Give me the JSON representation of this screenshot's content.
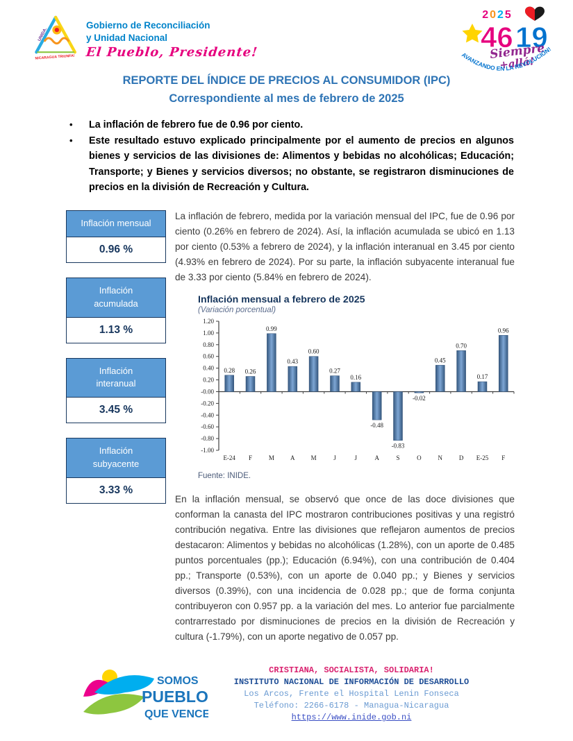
{
  "header": {
    "gov": {
      "line1": "Gobierno de Reconciliación",
      "line2": "y Unidad Nacional",
      "script": "El Pueblo, Presidente!",
      "triangle_left": "UNIDA.",
      "triangle_bottom": "NICARAGUA TRIUNFA!"
    },
    "anniv": {
      "year_chars": [
        "2",
        "0",
        "2",
        "5"
      ],
      "num_left": "46",
      "num_right": "19",
      "script1": "Siempre",
      "script2": "+allá!",
      "arc": "AVANZANDO EN LA REVOLUCIÓN!"
    }
  },
  "title": {
    "line1": "REPORTE DEL ÍNDICE DE PRECIOS AL CONSUMIDOR (IPC)",
    "line2": "Correspondiente al mes de febrero de 2025"
  },
  "bullets": [
    "La inflación de febrero fue de 0.96 por ciento.",
    "Este resultado estuvo explicado principalmente por el aumento de precios en algunos bienes y servicios de las divisiones de: Alimentos y bebidas no alcohólicas; Educación; Transporte; y Bienes y servicios diversos; no obstante, se registraron disminuciones de precios en la división de Recreación y Cultura."
  ],
  "stats": [
    {
      "label": "Inflación mensual",
      "value": "0.96 %"
    },
    {
      "label": "Inflación\nacumulada",
      "value": "1.13 %"
    },
    {
      "label": "Inflación\ninteranual",
      "value": "3.45 %"
    },
    {
      "label": "Inflación\nsubyacente",
      "value": "3.33 %"
    }
  ],
  "paragraph1": "La inflación de febrero, medida por la variación mensual del IPC, fue de 0.96 por ciento (0.26% en febrero de 2024). Así, la inflación acumulada se ubicó en 1.13 por ciento (0.53% a febrero de 2024), y la inflación interanual en 3.45 por ciento (4.93% en febrero de 2024). Por su parte, la inflación subyacente interanual fue de 3.33 por ciento (5.84% en febrero de 2024).",
  "chart_data": {
    "type": "bar",
    "title": "Inflación mensual a febrero de 2025",
    "subtitle": "(Variación porcentual)",
    "categories": [
      "E-24",
      "F",
      "M",
      "A",
      "M",
      "J",
      "J",
      "A",
      "S",
      "O",
      "N",
      "D",
      "E-25",
      "F"
    ],
    "values": [
      0.28,
      0.26,
      0.99,
      0.43,
      0.6,
      0.27,
      0.16,
      -0.48,
      -0.83,
      -0.02,
      0.45,
      0.7,
      0.17,
      0.96
    ],
    "ylim": [
      -1.0,
      1.2
    ],
    "ytick": 0.2,
    "grid": false,
    "legend": "none",
    "bar_color": "#4F81BD",
    "source": "Fuente: INIDE."
  },
  "paragraph2": "En la inflación mensual, se observó que once de las doce divisiones que conforman la canasta del IPC mostraron contribuciones positivas y una registró contribución negativa. Entre las divisiones que reflejaron aumentos de precios destacaron: Alimentos y bebidas no alcohólicas (1.28%), con un aporte de 0.485 puntos porcentuales (pp.); Educación (6.94%), con una contribución de 0.404 pp.; Transporte (0.53%), con un aporte de 0.040 pp.; y Bienes y servicios diversos (0.39%), con una incidencia de 0.028 pp.; que de forma conjunta contribuyeron con 0.957 pp. a la variación del mes. Lo anterior fue parcialmente contrarrestado por disminuciones de precios en la división de Recreación y cultura (-1.79%), con un aporte negativo de 0.057 pp.",
  "footer": {
    "logo": {
      "line1": "SOMOS",
      "line2": "PUEBLO",
      "line3": "QUE VENCE!"
    },
    "slogan": "CRISTIANA, SOCIALISTA, SOLIDARIA!",
    "institute": "INSTITUTO NACIONAL DE INFORMACIÓN DE DESARROLLO",
    "address": "Los Arcos, Frente el Hospital Lenin Fonseca",
    "phone": "Teléfono: 2266-6178 - Managua-Nicaragua",
    "website": "https://www.inide.gob.ni"
  },
  "colors": {
    "title_blue": "#2E74B5",
    "box_header_blue": "#5B9BD5",
    "navy": "#17365D",
    "pink": "#E6007E",
    "gov_blue": "#0083CA",
    "footer_pink": "#D9216F",
    "footer_navy": "#1F4E96",
    "footer_lightblue": "#6B9BD2",
    "bar_blue": "#4F81BD"
  }
}
